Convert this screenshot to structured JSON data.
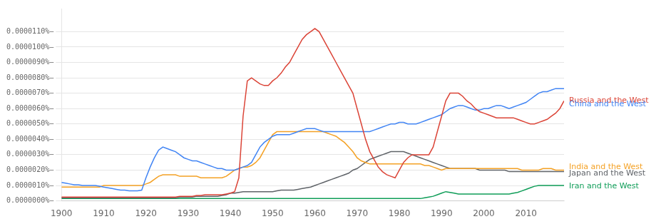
{
  "chart_data": {
    "type": "line",
    "grid": "y",
    "xlim": [
      1900,
      2019
    ],
    "ylim": [
      0,
      1.25e-07
    ],
    "xticks": [
      1900,
      1910,
      1920,
      1930,
      1940,
      1950,
      1960,
      1970,
      1980,
      1990,
      2000,
      2010
    ],
    "yticks": [
      {
        "value": 0,
        "label": "0.0000000%–"
      },
      {
        "value": 1e-08,
        "label": "0.0000010%–"
      },
      {
        "value": 2e-08,
        "label": "0.0000020%–"
      },
      {
        "value": 3e-08,
        "label": "0.0000030%–"
      },
      {
        "value": 4e-08,
        "label": "0.0000040%–"
      },
      {
        "value": 5e-08,
        "label": "0.0000050%–"
      },
      {
        "value": 6e-08,
        "label": "0.0000060%–"
      },
      {
        "value": 7e-08,
        "label": "0.0000070%–"
      },
      {
        "value": 8e-08,
        "label": "0.0000080%–"
      },
      {
        "value": 9e-08,
        "label": "0.0000090%–"
      },
      {
        "value": 1e-07,
        "label": "0.0000100%–"
      },
      {
        "value": 1.1e-07,
        "label": "0.0000110%–"
      }
    ],
    "x": [
      1900,
      1901,
      1902,
      1903,
      1904,
      1905,
      1906,
      1907,
      1908,
      1909,
      1910,
      1911,
      1912,
      1913,
      1914,
      1915,
      1916,
      1917,
      1918,
      1919,
      1920,
      1921,
      1922,
      1923,
      1924,
      1925,
      1926,
      1927,
      1928,
      1929,
      1930,
      1931,
      1932,
      1933,
      1934,
      1935,
      1936,
      1937,
      1938,
      1939,
      1940,
      1941,
      1942,
      1943,
      1944,
      1945,
      1946,
      1947,
      1948,
      1949,
      1950,
      1951,
      1952,
      1953,
      1954,
      1955,
      1956,
      1957,
      1958,
      1959,
      1960,
      1961,
      1962,
      1963,
      1964,
      1965,
      1966,
      1967,
      1968,
      1969,
      1970,
      1971,
      1972,
      1973,
      1974,
      1975,
      1976,
      1977,
      1978,
      1979,
      1980,
      1981,
      1982,
      1983,
      1984,
      1985,
      1986,
      1987,
      1988,
      1989,
      1990,
      1991,
      1992,
      1993,
      1994,
      1995,
      1996,
      1997,
      1998,
      1999,
      2000,
      2001,
      2002,
      2003,
      2004,
      2005,
      2006,
      2007,
      2008,
      2009,
      2010,
      2011,
      2012,
      2013,
      2014,
      2015,
      2016,
      2017,
      2018,
      2019
    ],
    "series": [
      {
        "name": "Russia and the West",
        "color": "#db4437",
        "values": [
          2.5e-09,
          2.5e-09,
          2.5e-09,
          2.5e-09,
          2.5e-09,
          2.5e-09,
          2.5e-09,
          2.5e-09,
          2.5e-09,
          2.5e-09,
          2.5e-09,
          2.5e-09,
          2.5e-09,
          2.5e-09,
          2.5e-09,
          2.5e-09,
          2.5e-09,
          2.5e-09,
          2.5e-09,
          2.5e-09,
          2.5e-09,
          2.5e-09,
          2.5e-09,
          2.5e-09,
          2.5e-09,
          2.5e-09,
          2.5e-09,
          2.5e-09,
          3e-09,
          3e-09,
          3e-09,
          3e-09,
          3.5e-09,
          3.5e-09,
          4e-09,
          4e-09,
          4e-09,
          4e-09,
          4e-09,
          4.5e-09,
          5e-09,
          6e-09,
          1.5e-08,
          5.5e-08,
          7.8e-08,
          8e-08,
          7.8e-08,
          7.6e-08,
          7.5e-08,
          7.5e-08,
          7.8e-08,
          8e-08,
          8.3e-08,
          8.7e-08,
          9e-08,
          9.5e-08,
          1e-07,
          1.05e-07,
          1.08e-07,
          1.1e-07,
          1.12e-07,
          1.1e-07,
          1.05e-07,
          1e-07,
          9.5e-08,
          9e-08,
          8.5e-08,
          8e-08,
          7.5e-08,
          7e-08,
          6e-08,
          5e-08,
          4e-08,
          3.2e-08,
          2.7e-08,
          2.2e-08,
          1.9e-08,
          1.7e-08,
          1.6e-08,
          1.5e-08,
          2e-08,
          2.5e-08,
          2.8e-08,
          3e-08,
          3e-08,
          3e-08,
          3e-08,
          3e-08,
          3.5e-08,
          4.5e-08,
          5.5e-08,
          6.5e-08,
          7e-08,
          7e-08,
          7e-08,
          6.8e-08,
          6.5e-08,
          6.3e-08,
          6e-08,
          5.8e-08,
          5.7e-08,
          5.6e-08,
          5.5e-08,
          5.4e-08,
          5.4e-08,
          5.4e-08,
          5.4e-08,
          5.4e-08,
          5.3e-08,
          5.2e-08,
          5.1e-08,
          5e-08,
          5e-08,
          5.1e-08,
          5.2e-08,
          5.3e-08,
          5.5e-08,
          5.7e-08,
          6e-08,
          6.5e-08
        ]
      },
      {
        "name": "China and the West",
        "color": "#4285f4",
        "values": [
          1.2e-08,
          1.15e-08,
          1.1e-08,
          1.05e-08,
          1.05e-08,
          1e-08,
          1e-08,
          1e-08,
          1e-08,
          9.5e-09,
          9e-09,
          8.5e-09,
          8e-09,
          7.5e-09,
          7e-09,
          7e-09,
          6.5e-09,
          6.5e-09,
          6.5e-09,
          7e-09,
          1.5e-08,
          2.2e-08,
          2.8e-08,
          3.3e-08,
          3.5e-08,
          3.4e-08,
          3.3e-08,
          3.2e-08,
          3e-08,
          2.8e-08,
          2.7e-08,
          2.6e-08,
          2.6e-08,
          2.5e-08,
          2.4e-08,
          2.3e-08,
          2.2e-08,
          2.1e-08,
          2.1e-08,
          2e-08,
          2e-08,
          2e-08,
          2.1e-08,
          2.2e-08,
          2.3e-08,
          2.5e-08,
          3e-08,
          3.5e-08,
          3.8e-08,
          4e-08,
          4.2e-08,
          4.3e-08,
          4.3e-08,
          4.3e-08,
          4.3e-08,
          4.4e-08,
          4.5e-08,
          4.6e-08,
          4.7e-08,
          4.7e-08,
          4.7e-08,
          4.6e-08,
          4.5e-08,
          4.5e-08,
          4.5e-08,
          4.5e-08,
          4.5e-08,
          4.5e-08,
          4.5e-08,
          4.5e-08,
          4.5e-08,
          4.5e-08,
          4.5e-08,
          4.5e-08,
          4.6e-08,
          4.7e-08,
          4.8e-08,
          4.9e-08,
          5e-08,
          5e-08,
          5.1e-08,
          5.1e-08,
          5e-08,
          5e-08,
          5e-08,
          5.1e-08,
          5.2e-08,
          5.3e-08,
          5.4e-08,
          5.5e-08,
          5.6e-08,
          5.8e-08,
          6e-08,
          6.1e-08,
          6.2e-08,
          6.2e-08,
          6.1e-08,
          6e-08,
          5.9e-08,
          5.9e-08,
          6e-08,
          6e-08,
          6.1e-08,
          6.2e-08,
          6.2e-08,
          6.1e-08,
          6e-08,
          6.1e-08,
          6.2e-08,
          6.3e-08,
          6.4e-08,
          6.6e-08,
          6.8e-08,
          7e-08,
          7.1e-08,
          7.1e-08,
          7.2e-08,
          7.3e-08,
          7.3e-08,
          7.3e-08
        ]
      },
      {
        "name": "India and the West",
        "color": "#f4a124",
        "values": [
          9e-09,
          9e-09,
          9e-09,
          9e-09,
          9e-09,
          9e-09,
          9e-09,
          9e-09,
          9e-09,
          9e-09,
          1e-08,
          1e-08,
          1e-08,
          1e-08,
          1e-08,
          1e-08,
          1e-08,
          1e-08,
          1e-08,
          1e-08,
          1.1e-08,
          1.2e-08,
          1.4e-08,
          1.6e-08,
          1.7e-08,
          1.7e-08,
          1.7e-08,
          1.7e-08,
          1.6e-08,
          1.6e-08,
          1.6e-08,
          1.6e-08,
          1.6e-08,
          1.5e-08,
          1.5e-08,
          1.5e-08,
          1.5e-08,
          1.5e-08,
          1.5e-08,
          1.6e-08,
          1.8e-08,
          2e-08,
          2.1e-08,
          2.2e-08,
          2.2e-08,
          2.3e-08,
          2.5e-08,
          2.8e-08,
          3.3e-08,
          3.8e-08,
          4.3e-08,
          4.5e-08,
          4.5e-08,
          4.5e-08,
          4.5e-08,
          4.5e-08,
          4.5e-08,
          4.5e-08,
          4.5e-08,
          4.5e-08,
          4.5e-08,
          4.5e-08,
          4.5e-08,
          4.4e-08,
          4.3e-08,
          4.2e-08,
          4e-08,
          3.8e-08,
          3.5e-08,
          3.2e-08,
          2.8e-08,
          2.6e-08,
          2.5e-08,
          2.4e-08,
          2.4e-08,
          2.4e-08,
          2.4e-08,
          2.4e-08,
          2.4e-08,
          2.4e-08,
          2.4e-08,
          2.4e-08,
          2.4e-08,
          2.4e-08,
          2.4e-08,
          2.4e-08,
          2.3e-08,
          2.3e-08,
          2.2e-08,
          2.1e-08,
          2e-08,
          2.1e-08,
          2.1e-08,
          2.1e-08,
          2.1e-08,
          2.1e-08,
          2.1e-08,
          2.1e-08,
          2.1e-08,
          2.1e-08,
          2.1e-08,
          2.1e-08,
          2.1e-08,
          2.1e-08,
          2.1e-08,
          2.1e-08,
          2.1e-08,
          2.1e-08,
          2.1e-08,
          2e-08,
          2e-08,
          2e-08,
          2e-08,
          2e-08,
          2.1e-08,
          2.1e-08,
          2.1e-08,
          2e-08,
          2e-08,
          2e-08
        ]
      },
      {
        "name": "Japan and the West",
        "color": "#5f6368",
        "values": [
          2e-09,
          2e-09,
          2e-09,
          2e-09,
          2e-09,
          2e-09,
          2e-09,
          2e-09,
          2e-09,
          2e-09,
          2e-09,
          2e-09,
          2e-09,
          2e-09,
          2e-09,
          2e-09,
          2e-09,
          2e-09,
          2e-09,
          2e-09,
          2e-09,
          2e-09,
          2e-09,
          2e-09,
          2e-09,
          2e-09,
          2e-09,
          2e-09,
          2.5e-09,
          2.5e-09,
          2.5e-09,
          2.5e-09,
          3e-09,
          3e-09,
          3e-09,
          3e-09,
          3e-09,
          3e-09,
          3.5e-09,
          4e-09,
          5e-09,
          5e-09,
          5.5e-09,
          6e-09,
          6e-09,
          6e-09,
          6e-09,
          6e-09,
          6e-09,
          6e-09,
          6e-09,
          6.5e-09,
          7e-09,
          7e-09,
          7e-09,
          7e-09,
          7.5e-09,
          8e-09,
          8.5e-09,
          9e-09,
          1e-08,
          1.1e-08,
          1.2e-08,
          1.3e-08,
          1.4e-08,
          1.5e-08,
          1.6e-08,
          1.7e-08,
          1.8e-08,
          2e-08,
          2.1e-08,
          2.3e-08,
          2.5e-08,
          2.7e-08,
          2.8e-08,
          2.9e-08,
          3e-08,
          3.1e-08,
          3.2e-08,
          3.2e-08,
          3.2e-08,
          3.2e-08,
          3.1e-08,
          3e-08,
          2.9e-08,
          2.8e-08,
          2.7e-08,
          2.6e-08,
          2.5e-08,
          2.4e-08,
          2.3e-08,
          2.2e-08,
          2.1e-08,
          2.1e-08,
          2.1e-08,
          2.1e-08,
          2.1e-08,
          2.1e-08,
          2.1e-08,
          2e-08,
          2e-08,
          2e-08,
          2e-08,
          2e-08,
          2e-08,
          2e-08,
          1.9e-08,
          1.9e-08,
          1.9e-08,
          1.9e-08,
          1.9e-08,
          1.9e-08,
          1.9e-08,
          1.9e-08,
          1.9e-08,
          1.9e-08,
          1.9e-08,
          1.9e-08,
          1.9e-08,
          1.9e-08
        ]
      },
      {
        "name": "Iran and the West",
        "color": "#0f9d58",
        "values": [
          1.5e-09,
          1.5e-09,
          1.5e-09,
          1.5e-09,
          1.5e-09,
          1.5e-09,
          1.5e-09,
          1.5e-09,
          1.5e-09,
          1.5e-09,
          1.5e-09,
          1.5e-09,
          1.5e-09,
          1.5e-09,
          1.5e-09,
          1.5e-09,
          1.5e-09,
          1.5e-09,
          1.5e-09,
          1.5e-09,
          1.5e-09,
          1.5e-09,
          1.5e-09,
          1.5e-09,
          1.5e-09,
          1.5e-09,
          1.5e-09,
          1.5e-09,
          1.5e-09,
          1.5e-09,
          1.5e-09,
          1.5e-09,
          1.5e-09,
          1.5e-09,
          1.5e-09,
          1.5e-09,
          1.5e-09,
          1.5e-09,
          1.5e-09,
          1.5e-09,
          1.5e-09,
          1.5e-09,
          1.5e-09,
          1.5e-09,
          1.5e-09,
          1.5e-09,
          1.5e-09,
          1.5e-09,
          1.5e-09,
          1.5e-09,
          1.5e-09,
          1.5e-09,
          1.5e-09,
          1.5e-09,
          1.5e-09,
          1.5e-09,
          1.5e-09,
          1.5e-09,
          1.5e-09,
          1.5e-09,
          1.5e-09,
          1.5e-09,
          1.5e-09,
          1.5e-09,
          1.5e-09,
          1.5e-09,
          1.5e-09,
          1.5e-09,
          1.5e-09,
          1.5e-09,
          1.5e-09,
          1.5e-09,
          1.5e-09,
          1.5e-09,
          1.5e-09,
          1.5e-09,
          1.5e-09,
          1.5e-09,
          1.5e-09,
          1.5e-09,
          1.5e-09,
          1.5e-09,
          1.5e-09,
          1.5e-09,
          1.5e-09,
          1.5e-09,
          2e-09,
          2.5e-09,
          3e-09,
          4e-09,
          5e-09,
          6e-09,
          5.5e-09,
          5e-09,
          4.5e-09,
          4.5e-09,
          4.5e-09,
          4.5e-09,
          4.5e-09,
          4.5e-09,
          4.5e-09,
          4.5e-09,
          4.5e-09,
          4.5e-09,
          4.5e-09,
          4.5e-09,
          4.5e-09,
          5e-09,
          5.5e-09,
          6.5e-09,
          7.5e-09,
          8.5e-09,
          9.5e-09,
          1e-08,
          1e-08,
          1e-08,
          1e-08,
          1e-08,
          1e-08,
          1e-08
        ]
      }
    ],
    "annotations": [
      {
        "text": "Russia and the West",
        "x": 2019,
        "y": 6.5e-08,
        "color": "#db4437"
      },
      {
        "text": "China and the West",
        "x": 2019,
        "y": 6.3e-08,
        "color": "#4285f4"
      },
      {
        "text": "India and the West",
        "x": 2019,
        "y": 2.2e-08,
        "color": "#f4a124"
      },
      {
        "text": "Japan and the West",
        "x": 2019,
        "y": 1.8e-08,
        "color": "#5f6368"
      },
      {
        "text": "Iran and the West",
        "x": 2019,
        "y": 9.5e-09,
        "color": "#0f9d58"
      }
    ]
  }
}
